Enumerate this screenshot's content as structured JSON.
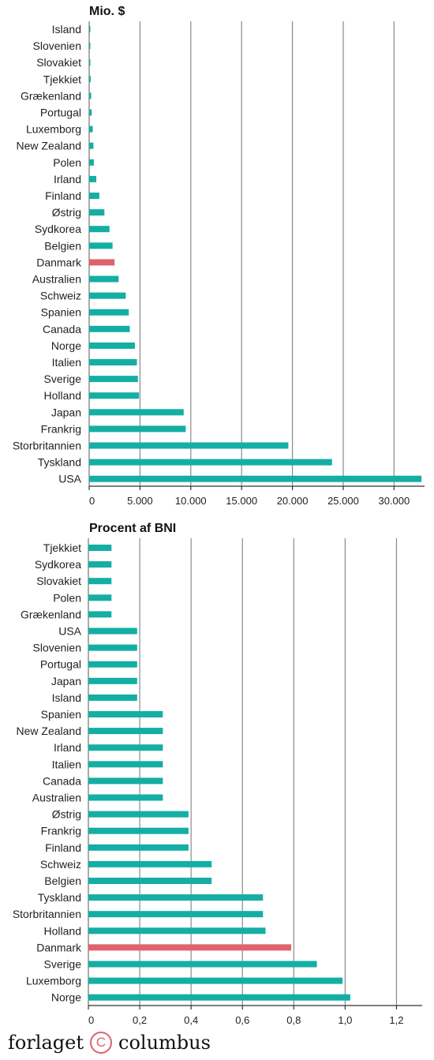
{
  "chart_data": [
    {
      "type": "bar",
      "orientation": "horizontal",
      "title": "Mio. $",
      "categories": [
        "Island",
        "Slovenien",
        "Slovakiet",
        "Tjekkiet",
        "Grækenland",
        "Portugal",
        "Luxemborg",
        "New Zealand",
        "Polen",
        "Irland",
        "Finland",
        "Østrig",
        "Sydkorea",
        "Belgien",
        "Danmark",
        "Australien",
        "Schweiz",
        "Spanien",
        "Canada",
        "Norge",
        "Italien",
        "Sverige",
        "Holland",
        "Japan",
        "Frankrig",
        "Storbritannien",
        "Tyskland",
        "USA"
      ],
      "values": [
        50,
        60,
        80,
        150,
        200,
        250,
        350,
        420,
        460,
        700,
        1000,
        1500,
        2000,
        2300,
        2500,
        2900,
        3600,
        3900,
        4000,
        4500,
        4700,
        4800,
        4900,
        9300,
        9500,
        19600,
        23900,
        32700
      ],
      "highlight": "Danmark",
      "xticks": [
        "0",
        "5.000",
        "10.000",
        "15.000",
        "20.000",
        "25.000",
        "30.000"
      ],
      "xlim": [
        0,
        33000
      ],
      "bar_color": "#14aea4",
      "highlight_color": "#e0626f",
      "grid": true
    },
    {
      "type": "bar",
      "orientation": "horizontal",
      "title": "Procent af BNI",
      "categories": [
        "Tjekkiet",
        "Sydkorea",
        "Slovakiet",
        "Polen",
        "Grækenland",
        "USA",
        "Slovenien",
        "Portugal",
        "Japan",
        "Island",
        "Spanien",
        "New Zealand",
        "Irland",
        "Italien",
        "Canada",
        "Australien",
        "Østrig",
        "Frankrig",
        "Finland",
        "Schweiz",
        "Belgien",
        "Tyskland",
        "Storbritannien",
        "Holland",
        "Danmark",
        "Sverige",
        "Luxemborg",
        "Norge"
      ],
      "values": [
        0.09,
        0.09,
        0.09,
        0.09,
        0.09,
        0.19,
        0.19,
        0.19,
        0.19,
        0.19,
        0.29,
        0.29,
        0.29,
        0.29,
        0.29,
        0.29,
        0.39,
        0.39,
        0.39,
        0.48,
        0.48,
        0.68,
        0.68,
        0.69,
        0.79,
        0.89,
        0.99,
        1.02
      ],
      "highlight": "Danmark",
      "xticks": [
        "0",
        "0,2",
        "0,4",
        "0,6",
        "0,8",
        "1,0",
        "1,2"
      ],
      "xlim": [
        0,
        1.3
      ],
      "bar_color": "#14aea4",
      "highlight_color": "#e0626f",
      "grid": true
    }
  ],
  "footer": {
    "left": "forlaget",
    "logo": "C",
    "right": "columbus"
  }
}
